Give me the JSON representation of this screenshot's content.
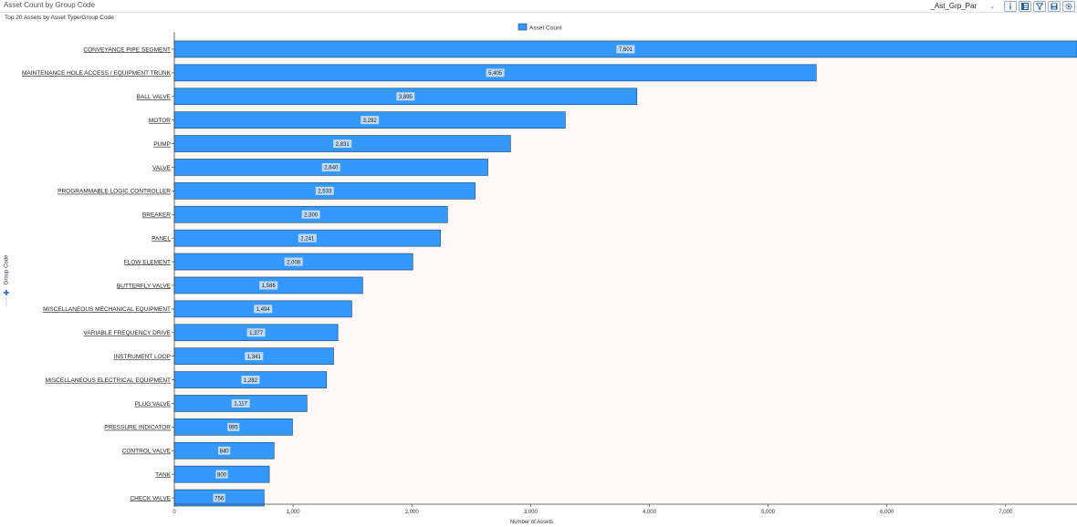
{
  "window": {
    "title": "Asset Count by Group Code"
  },
  "toolbar": {
    "parameter_value": "_Ast_Grp_Par",
    "icons": [
      "info-icon",
      "table-view-icon",
      "filter-icon",
      "save-icon",
      "settings-icon"
    ]
  },
  "colors": {
    "bar_fill": "#3399ff",
    "bar_stroke": "#1f3f66",
    "plot_bg": "#fff8f8",
    "expand_icon": "#2e7bd6"
  },
  "chart_data": {
    "type": "bar",
    "orientation": "horizontal",
    "title": "Top 20 Assets by Asset Type/Group Code",
    "legend": {
      "label": "Asset Count",
      "position": "top-center"
    },
    "xlabel": "Number of Assets",
    "ylabel": "Group Code",
    "xlim": [
      0,
      7601
    ],
    "xticks": [
      0,
      1000,
      2000,
      3000,
      4000,
      5000,
      6000,
      7000
    ],
    "xtick_labels": [
      "0",
      "1,000",
      "2,000",
      "3,000",
      "4,000",
      "5,000",
      "6,000",
      "7,000"
    ],
    "grid": false,
    "categories": [
      "CONVEYANCE PIPE SEGMENT",
      "MAINTENANCE HOLE ACCESS / EQUIPMENT TRUNK",
      "BALL VALVE",
      "MOTOR",
      "PUMP",
      "VALVE",
      "PROGRAMMABLE LOGIC CONTROLLER",
      "BREAKER",
      "PANEL",
      "FLOW ELEMENT",
      "BUTTERFLY VALVE",
      "MISCELLANEOUS MECHANICAL EQUIPMENT",
      "VARIABLE FREQUENCY DRIVE",
      "INSTRUMENT LOOP",
      "MISCELLANEOUS ELECTRICAL EQUIPMENT",
      "PLUG VALVE",
      "PRESSURE INDICATOR",
      "CONTROL VALVE",
      "TANK",
      "CHECK VALVE"
    ],
    "values": [
      7601,
      5405,
      3895,
      3292,
      2831,
      2640,
      2533,
      2300,
      2241,
      2008,
      1586,
      1494,
      1377,
      1341,
      1282,
      1117,
      995,
      840,
      800,
      756
    ],
    "value_labels": [
      "7,601",
      "5,405",
      "3,895",
      "3,292",
      "2,831",
      "2,640",
      "2,533",
      "2,300",
      "2,241",
      "2,008",
      "1,586",
      "1,494",
      "1,377",
      "1,341",
      "1,282",
      "1,117",
      "995",
      "840",
      "800",
      "756"
    ]
  }
}
